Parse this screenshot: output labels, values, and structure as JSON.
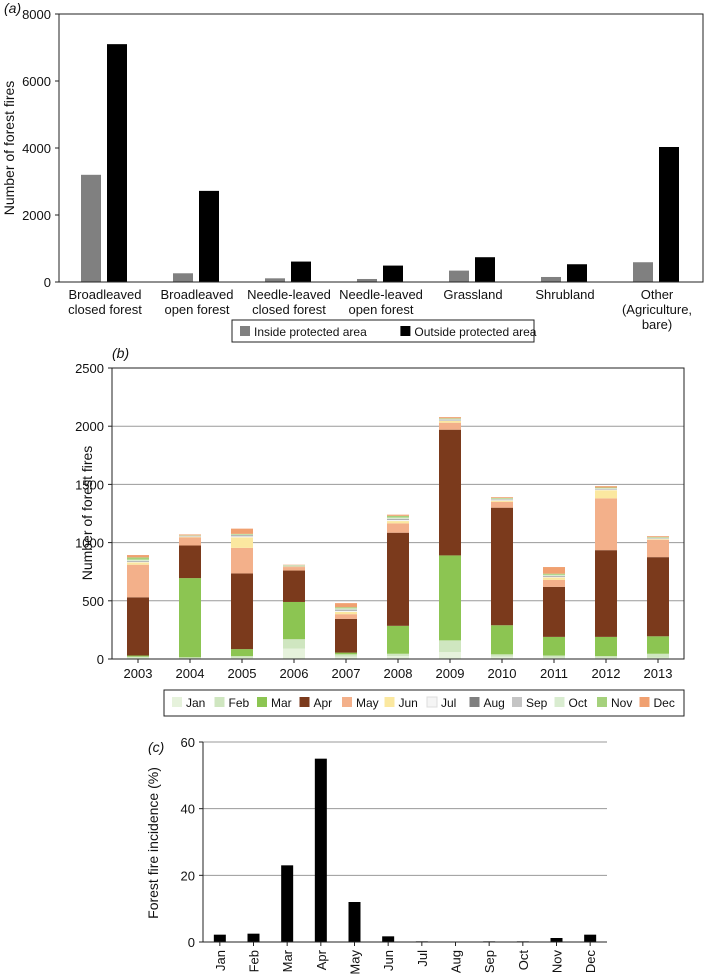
{
  "chart_data": [
    {
      "panel": "(a)",
      "type": "bar",
      "ylabel": "Number of forest fires",
      "ylim": [
        0,
        8000
      ],
      "yticks": [
        0,
        2000,
        4000,
        6000,
        8000
      ],
      "grid": false,
      "legend_position": "bottom",
      "categories": [
        [
          "Broadleaved",
          "closed forest"
        ],
        [
          "Broadleaved",
          "open forest"
        ],
        [
          "Needle-leaved",
          "closed forest"
        ],
        [
          "Needle-leaved",
          "open forest"
        ],
        [
          "Grassland"
        ],
        [
          "Shrubland"
        ],
        [
          "Other",
          "(Agriculture,",
          "bare)"
        ]
      ],
      "series": [
        {
          "name": "Inside protected area",
          "color": "#808080",
          "values": [
            3200,
            260,
            110,
            90,
            340,
            150,
            590
          ]
        },
        {
          "name": "Outside protected area",
          "color": "#000000",
          "values": [
            7100,
            2720,
            610,
            490,
            740,
            530,
            4030
          ]
        }
      ]
    },
    {
      "panel": "(b)",
      "type": "bar",
      "stacked": true,
      "ylabel": "Number of forest fires",
      "ylim": [
        0,
        2500
      ],
      "yticks": [
        0,
        500,
        1000,
        1500,
        2000,
        2500
      ],
      "grid": true,
      "legend_position": "bottom",
      "categories": [
        "2003",
        "2004",
        "2005",
        "2006",
        "2007",
        "2008",
        "2009",
        "2010",
        "2011",
        "2012",
        "2013"
      ],
      "series": [
        {
          "name": "Jan",
          "color": "#e6f2dc",
          "values": [
            10,
            5,
            10,
            90,
            20,
            25,
            60,
            20,
            10,
            10,
            10
          ]
        },
        {
          "name": "Feb",
          "color": "#cfe6c0",
          "values": [
            10,
            10,
            15,
            80,
            20,
            20,
            100,
            20,
            20,
            15,
            35
          ]
        },
        {
          "name": "Mar",
          "color": "#8cc552",
          "values": [
            10,
            680,
            60,
            320,
            15,
            240,
            730,
            250,
            160,
            165,
            150
          ]
        },
        {
          "name": "Apr",
          "color": "#7b3a1c",
          "values": [
            500,
            280,
            650,
            270,
            290,
            800,
            1080,
            1010,
            430,
            745,
            680
          ]
        },
        {
          "name": "May",
          "color": "#f3b08a",
          "values": [
            280,
            70,
            220,
            30,
            40,
            80,
            60,
            50,
            60,
            445,
            150
          ]
        },
        {
          "name": "Jun",
          "color": "#fbe8a0",
          "values": [
            20,
            5,
            90,
            5,
            20,
            20,
            15,
            10,
            20,
            70,
            5
          ]
        },
        {
          "name": "Jul",
          "color": "#f5f5f5",
          "values": [
            5,
            2,
            10,
            2,
            10,
            10,
            5,
            5,
            5,
            5,
            2
          ]
        },
        {
          "name": "Aug",
          "color": "#7f7f7f",
          "values": [
            3,
            2,
            5,
            2,
            5,
            5,
            3,
            3,
            3,
            3,
            2
          ]
        },
        {
          "name": "Sep",
          "color": "#c4c4c4",
          "values": [
            5,
            2,
            5,
            2,
            5,
            5,
            5,
            5,
            5,
            5,
            3
          ]
        },
        {
          "name": "Oct",
          "color": "#d9ecd0",
          "values": [
            10,
            3,
            5,
            3,
            10,
            10,
            5,
            5,
            10,
            5,
            5
          ]
        },
        {
          "name": "Nov",
          "color": "#a5d17c",
          "values": [
            20,
            3,
            5,
            3,
            10,
            15,
            5,
            5,
            10,
            5,
            5
          ]
        },
        {
          "name": "Dec",
          "color": "#f0a070",
          "values": [
            20,
            8,
            45,
            3,
            35,
            10,
            10,
            7,
            57,
            12,
            8
          ]
        }
      ]
    },
    {
      "panel": "(c)",
      "type": "bar",
      "ylabel": "Forest fire incidence (%)",
      "ylim": [
        0,
        60
      ],
      "yticks": [
        0,
        20,
        40,
        60
      ],
      "grid": true,
      "color": "#000000",
      "categories": [
        "Jan",
        "Feb",
        "Mar",
        "Apr",
        "May",
        "Jun",
        "Jul",
        "Aug",
        "Sep",
        "Oct",
        "Nov",
        "Dec"
      ],
      "values": [
        2.2,
        2.5,
        23,
        55,
        12,
        1.7,
        0.2,
        0.1,
        0.2,
        0.2,
        1.2,
        2.2
      ]
    }
  ]
}
